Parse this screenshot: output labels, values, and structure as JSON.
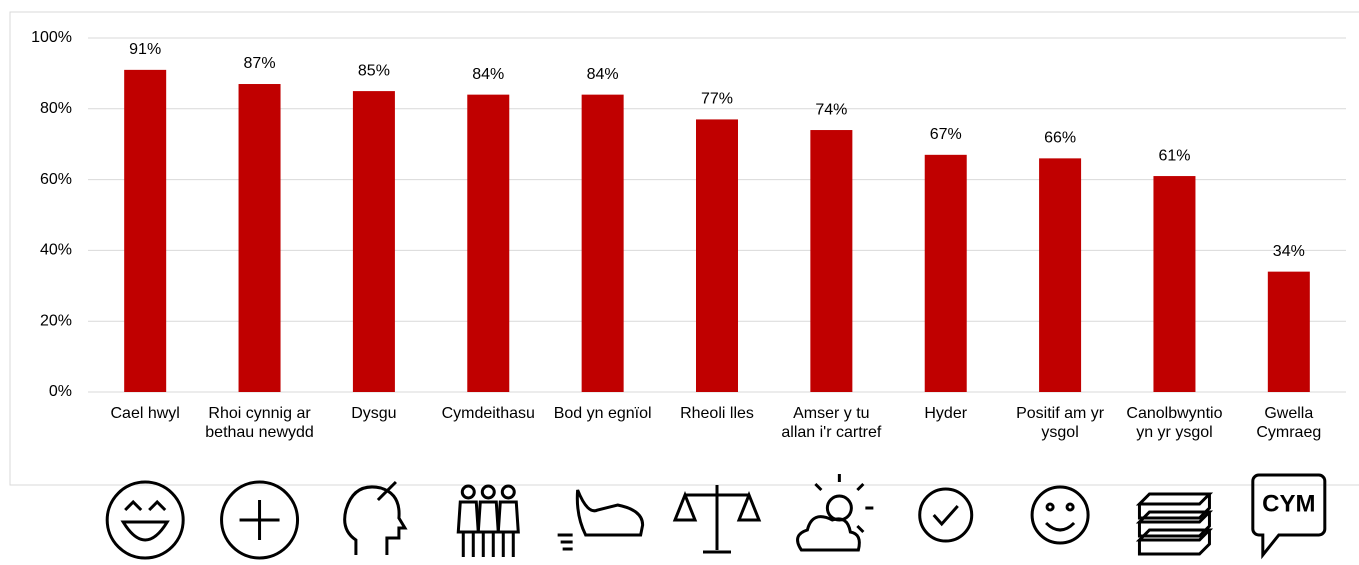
{
  "chart_data": {
    "type": "bar",
    "categories": [
      "Cael hwyl",
      "Rhoi cynnig ar bethau newydd",
      "Dysgu",
      "Cymdeithasu",
      "Bod yn egnïol",
      "Rheoli lles",
      "Amser y tu allan i'r cartref",
      "Hyder",
      "Positif am yr ysgol",
      "Canolbwyntio yn yr ysgol",
      "Gwella Cymraeg"
    ],
    "values": [
      91,
      87,
      85,
      84,
      84,
      77,
      74,
      67,
      66,
      61,
      34
    ],
    "value_labels": [
      "91%",
      "87%",
      "85%",
      "84%",
      "84%",
      "77%",
      "74%",
      "67%",
      "66%",
      "61%",
      "34%"
    ],
    "color": "#c00000",
    "ylim": [
      0,
      100
    ],
    "yticks": [
      {
        "value": 0,
        "label": "0%"
      },
      {
        "value": 20,
        "label": "20%"
      },
      {
        "value": 40,
        "label": "40%"
      },
      {
        "value": 60,
        "label": "60%"
      },
      {
        "value": 80,
        "label": "80%"
      },
      {
        "value": 100,
        "label": "100%"
      }
    ],
    "grid": true,
    "annotations": [
      "CYM"
    ]
  }
}
